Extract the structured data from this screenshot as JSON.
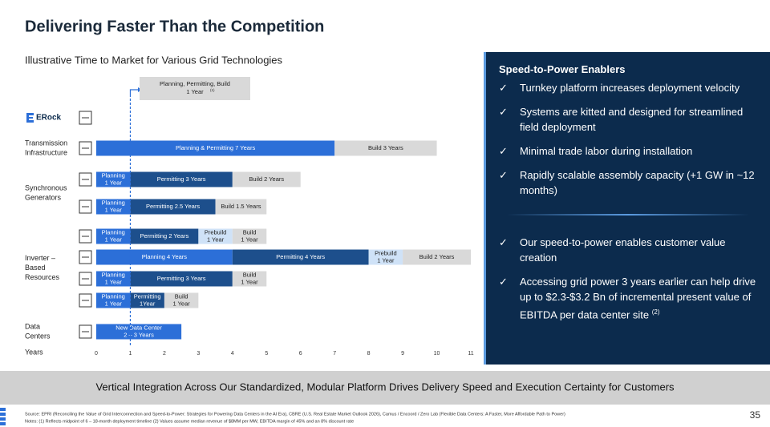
{
  "title": "Delivering Faster Than the Competition",
  "chart_data": {
    "type": "gantt",
    "title": "Illustrative Time to Market for Various Grid Technologies",
    "xlabel": "Years",
    "xlim": [
      0,
      11
    ],
    "xticks": [
      0,
      1,
      2,
      3,
      4,
      5,
      6,
      7,
      8,
      9,
      10,
      11
    ],
    "annotation": {
      "lines": [
        "Planning, Permitting, Build",
        "1 Year"
      ],
      "note": "(1)",
      "value": 1
    },
    "groups": [
      {
        "label": [
          "ERock"
        ],
        "rows": [
          {
            "segments": []
          }
        ]
      },
      {
        "label": [
          "Transmission",
          "Infrastructure"
        ],
        "rows": [
          {
            "segments": [
              {
                "lines": [
                  "Planning & Permitting 7 Years"
                ],
                "value": 7,
                "color": "#2c6fd8"
              },
              {
                "lines": [
                  "Build 3 Years"
                ],
                "value": 3,
                "color": "#d9d9d9"
              }
            ]
          }
        ]
      },
      {
        "label": [
          "Synchronous",
          "Generators"
        ],
        "rows": [
          {
            "segments": [
              {
                "lines": [
                  "Planning",
                  "1 Year"
                ],
                "value": 1,
                "color": "#2c6fd8"
              },
              {
                "lines": [
                  "Permitting 3 Years"
                ],
                "value": 3,
                "color": "#1d4f8c"
              },
              {
                "lines": [
                  "Build 2 Years"
                ],
                "value": 2,
                "color": "#d9d9d9"
              }
            ]
          },
          {
            "segments": [
              {
                "lines": [
                  "Planning",
                  "1 Year"
                ],
                "value": 1,
                "color": "#2c6fd8"
              },
              {
                "lines": [
                  "Permitting 2.5 Years"
                ],
                "value": 2.5,
                "color": "#1d4f8c"
              },
              {
                "lines": [
                  "Build 1.5 Years"
                ],
                "value": 1.5,
                "color": "#d9d9d9"
              }
            ]
          }
        ]
      },
      {
        "label": [
          "Inverter –",
          "Based",
          "Resources"
        ],
        "rows": [
          {
            "segments": [
              {
                "lines": [
                  "Planning",
                  "1 Year"
                ],
                "value": 1,
                "color": "#2c6fd8"
              },
              {
                "lines": [
                  "Permitting 2 Years"
                ],
                "value": 2,
                "color": "#1d4f8c"
              },
              {
                "lines": [
                  "Prebuild",
                  "1 Year"
                ],
                "value": 1,
                "color": "#cfe2f7"
              },
              {
                "lines": [
                  "Build",
                  "1 Year"
                ],
                "value": 1,
                "color": "#d9d9d9"
              }
            ]
          },
          {
            "segments": [
              {
                "lines": [
                  "Planning 4 Years"
                ],
                "value": 4,
                "color": "#2c6fd8"
              },
              {
                "lines": [
                  "Permitting 4 Years"
                ],
                "value": 4,
                "color": "#1d4f8c"
              },
              {
                "lines": [
                  "Prebuild",
                  "1 Year"
                ],
                "value": 1,
                "color": "#cfe2f7"
              },
              {
                "lines": [
                  "Build 2 Years"
                ],
                "value": 2,
                "color": "#d9d9d9"
              }
            ]
          },
          {
            "segments": [
              {
                "lines": [
                  "Planning",
                  "1 Year"
                ],
                "value": 1,
                "color": "#2c6fd8"
              },
              {
                "lines": [
                  "Permitting 3 Years"
                ],
                "value": 3,
                "color": "#1d4f8c"
              },
              {
                "lines": [
                  "Build",
                  "1 Year"
                ],
                "value": 1,
                "color": "#d9d9d9"
              }
            ]
          },
          {
            "segments": [
              {
                "lines": [
                  "Planning",
                  "1 Year"
                ],
                "value": 1,
                "color": "#2c6fd8"
              },
              {
                "lines": [
                  "Permitting",
                  "1Year"
                ],
                "value": 1,
                "color": "#1d4f8c"
              },
              {
                "lines": [
                  "Build",
                  "1 Year"
                ],
                "value": 1,
                "color": "#d9d9d9"
              }
            ]
          }
        ]
      },
      {
        "label": [
          "Data",
          "Centers"
        ],
        "rows": [
          {
            "segments": [
              {
                "lines": [
                  "New Data Center",
                  "2 – 3 Years"
                ],
                "value": 2.5,
                "color": "#2c6fd8"
              }
            ]
          }
        ]
      }
    ]
  },
  "sidebar": {
    "title": "Speed-to-Power Enablers",
    "bullets": [
      "Turnkey platform increases deployment velocity",
      "Systems are kitted and designed for streamlined field deployment",
      "Minimal trade labor during installation",
      "Rapidly scalable assembly capacity (+1 GW in ~12 months)"
    ],
    "bullets2": [
      "Our speed-to-power enables customer value creation",
      "Accessing grid power 3 years earlier can help drive up to $2.3-$3.2 Bn of incremental present value of EBITDA per data center site"
    ],
    "bullet_note": "(2)",
    "check": "✓"
  },
  "banner": "Vertical Integration Across Our Standardized, Modular Platform Drives Delivery Speed and Execution Certainty for Customers",
  "footer": [
    "Source: EPRI (Reconciling the Value of Grid Interconnection and Speed-to-Power: Strategies for Powering Data Centers in the AI Era), CBRE (U.S. Real Estate Market Outlook 2026), Camus / Encoord / Zero Lab (Flexible Data Centers: A Faster, More Affordable Path to Power)",
    "Notes: (1) Reflects midpoint of 6 – 18-month deployment timeline (2) Values assume median revenue of $8MM per MW, EBITDA margin of 45% and an 8% discount rate"
  ],
  "page_number": "35"
}
